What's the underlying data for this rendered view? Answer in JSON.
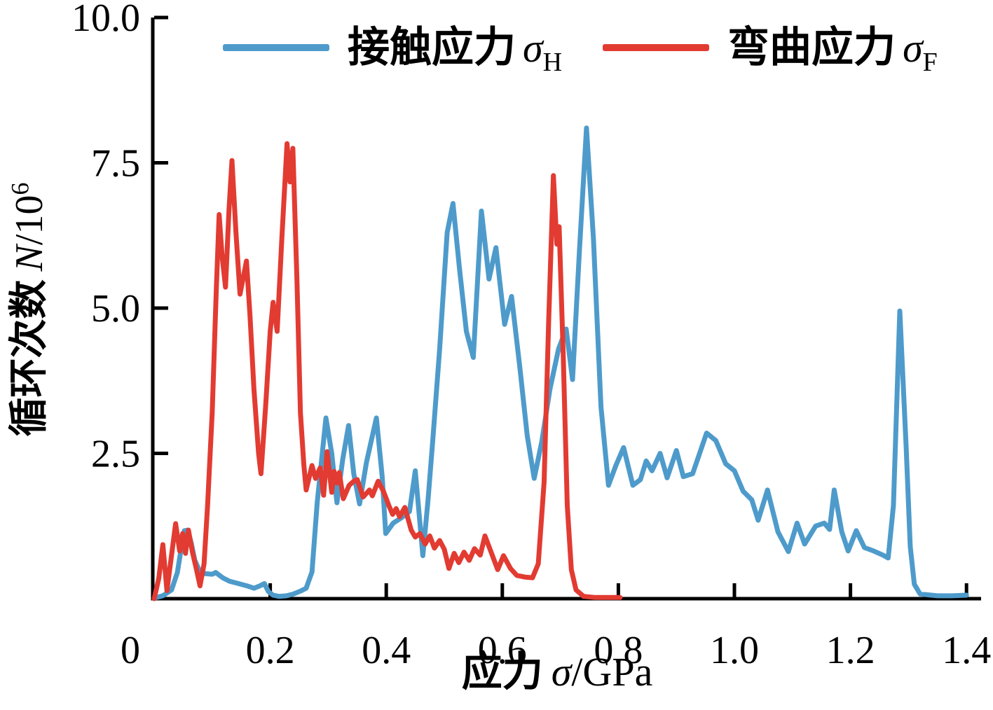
{
  "chart_data": {
    "type": "line",
    "title": "",
    "grid": false,
    "legend_position": "top-center",
    "xlabel": {
      "cn": "应力",
      "symbol": "σ",
      "unit": "/GPa"
    },
    "ylabel": {
      "cn": "循环次数",
      "symbol": "N",
      "denom": "/10",
      "exp": "6"
    },
    "xlim": [
      0,
      1.4
    ],
    "ylim": [
      0,
      10
    ],
    "origin_label": "0",
    "xticks": [
      {
        "v": 0.2,
        "label": "0.2"
      },
      {
        "v": 0.4,
        "label": "0.4"
      },
      {
        "v": 0.6,
        "label": "0.6"
      },
      {
        "v": 0.8,
        "label": "0.8"
      },
      {
        "v": 1.0,
        "label": "1.0"
      },
      {
        "v": 1.2,
        "label": "1.2"
      },
      {
        "v": 1.4,
        "label": "1.4"
      }
    ],
    "yticks": [
      {
        "v": 2.5,
        "label": "2.5"
      },
      {
        "v": 5.0,
        "label": "5.0"
      },
      {
        "v": 7.5,
        "label": "7.5"
      },
      {
        "v": 10.0,
        "label": "10.0"
      }
    ],
    "series": [
      {
        "name": "接触应力 σH",
        "slug": "contact-stress",
        "legend": {
          "cn": "接触应力",
          "symbol": "σ",
          "sub": "H"
        },
        "color": "#4E9BCB",
        "points": [
          [
            0.004,
            0.02
          ],
          [
            0.015,
            0.05
          ],
          [
            0.03,
            0.15
          ],
          [
            0.04,
            0.45
          ],
          [
            0.048,
            0.95
          ],
          [
            0.052,
            1.17
          ],
          [
            0.058,
            1.18
          ],
          [
            0.064,
            0.95
          ],
          [
            0.07,
            0.66
          ],
          [
            0.078,
            0.48
          ],
          [
            0.088,
            0.43
          ],
          [
            0.1,
            0.42
          ],
          [
            0.106,
            0.45
          ],
          [
            0.118,
            0.36
          ],
          [
            0.13,
            0.3
          ],
          [
            0.145,
            0.26
          ],
          [
            0.16,
            0.22
          ],
          [
            0.172,
            0.18
          ],
          [
            0.182,
            0.22
          ],
          [
            0.19,
            0.26
          ],
          [
            0.197,
            0.12
          ],
          [
            0.205,
            0.06
          ],
          [
            0.215,
            0.04
          ],
          [
            0.228,
            0.05
          ],
          [
            0.24,
            0.08
          ],
          [
            0.252,
            0.13
          ],
          [
            0.262,
            0.18
          ],
          [
            0.272,
            0.46
          ],
          [
            0.281,
            1.66
          ],
          [
            0.296,
            3.11
          ],
          [
            0.306,
            2.5
          ],
          [
            0.315,
            1.65
          ],
          [
            0.325,
            2.4
          ],
          [
            0.335,
            2.98
          ],
          [
            0.344,
            2.15
          ],
          [
            0.354,
            1.63
          ],
          [
            0.366,
            2.35
          ],
          [
            0.383,
            3.11
          ],
          [
            0.393,
            2.1
          ],
          [
            0.399,
            1.12
          ],
          [
            0.412,
            1.3
          ],
          [
            0.426,
            1.39
          ],
          [
            0.44,
            1.5
          ],
          [
            0.45,
            2.2
          ],
          [
            0.463,
            0.74
          ],
          [
            0.472,
            1.7
          ],
          [
            0.48,
            2.7
          ],
          [
            0.492,
            4.3
          ],
          [
            0.505,
            6.3
          ],
          [
            0.515,
            6.8
          ],
          [
            0.526,
            5.7
          ],
          [
            0.538,
            4.6
          ],
          [
            0.55,
            4.15
          ],
          [
            0.564,
            6.67
          ],
          [
            0.577,
            5.5
          ],
          [
            0.589,
            6.04
          ],
          [
            0.604,
            4.72
          ],
          [
            0.616,
            5.2
          ],
          [
            0.63,
            4.0
          ],
          [
            0.643,
            2.8
          ],
          [
            0.655,
            2.07
          ],
          [
            0.668,
            2.7
          ],
          [
            0.682,
            3.6
          ],
          [
            0.697,
            4.3
          ],
          [
            0.71,
            4.64
          ],
          [
            0.721,
            3.77
          ],
          [
            0.733,
            6.0
          ],
          [
            0.745,
            8.1
          ],
          [
            0.757,
            6.2
          ],
          [
            0.77,
            3.3
          ],
          [
            0.783,
            1.95
          ],
          [
            0.796,
            2.3
          ],
          [
            0.809,
            2.6
          ],
          [
            0.825,
            1.95
          ],
          [
            0.838,
            2.05
          ],
          [
            0.848,
            2.37
          ],
          [
            0.858,
            2.2
          ],
          [
            0.872,
            2.5
          ],
          [
            0.884,
            2.08
          ],
          [
            0.9,
            2.55
          ],
          [
            0.912,
            2.1
          ],
          [
            0.928,
            2.15
          ],
          [
            0.952,
            2.85
          ],
          [
            0.968,
            2.72
          ],
          [
            0.985,
            2.32
          ],
          [
            1.0,
            2.2
          ],
          [
            1.015,
            1.85
          ],
          [
            1.03,
            1.7
          ],
          [
            1.041,
            1.35
          ],
          [
            1.057,
            1.87
          ],
          [
            1.075,
            1.15
          ],
          [
            1.093,
            0.81
          ],
          [
            1.108,
            1.3
          ],
          [
            1.121,
            0.94
          ],
          [
            1.14,
            1.25
          ],
          [
            1.155,
            1.3
          ],
          [
            1.164,
            1.19
          ],
          [
            1.172,
            1.87
          ],
          [
            1.185,
            1.15
          ],
          [
            1.196,
            0.82
          ],
          [
            1.21,
            1.17
          ],
          [
            1.224,
            0.88
          ],
          [
            1.24,
            0.82
          ],
          [
            1.256,
            0.75
          ],
          [
            1.265,
            0.7
          ],
          [
            1.274,
            1.6
          ],
          [
            1.285,
            4.95
          ],
          [
            1.296,
            2.6
          ],
          [
            1.303,
            0.9
          ],
          [
            1.31,
            0.25
          ],
          [
            1.32,
            0.08
          ],
          [
            1.35,
            0.05
          ],
          [
            1.375,
            0.05
          ],
          [
            1.4,
            0.06
          ]
        ]
      },
      {
        "name": "弯曲应力 σF",
        "slug": "bending-stress",
        "legend": {
          "cn": "弯曲应力",
          "symbol": "σ",
          "sub": "F"
        },
        "color": "#E23B32",
        "points": [
          [
            0.0,
            0.0
          ],
          [
            0.008,
            0.35
          ],
          [
            0.015,
            0.93
          ],
          [
            0.022,
            0.14
          ],
          [
            0.03,
            0.75
          ],
          [
            0.037,
            1.29
          ],
          [
            0.044,
            0.82
          ],
          [
            0.049,
            1.12
          ],
          [
            0.054,
            0.78
          ],
          [
            0.059,
            1.18
          ],
          [
            0.066,
            0.8
          ],
          [
            0.073,
            0.5
          ],
          [
            0.079,
            0.22
          ],
          [
            0.086,
            0.6
          ],
          [
            0.092,
            1.6
          ],
          [
            0.1,
            3.2
          ],
          [
            0.107,
            5.3
          ],
          [
            0.112,
            6.61
          ],
          [
            0.117,
            5.9
          ],
          [
            0.123,
            5.36
          ],
          [
            0.129,
            6.7
          ],
          [
            0.134,
            7.54
          ],
          [
            0.141,
            6.3
          ],
          [
            0.148,
            5.24
          ],
          [
            0.155,
            5.6
          ],
          [
            0.159,
            5.81
          ],
          [
            0.165,
            4.9
          ],
          [
            0.172,
            3.6
          ],
          [
            0.18,
            2.5
          ],
          [
            0.184,
            2.15
          ],
          [
            0.192,
            3.3
          ],
          [
            0.2,
            4.6
          ],
          [
            0.205,
            5.1
          ],
          [
            0.212,
            4.6
          ],
          [
            0.22,
            6.2
          ],
          [
            0.229,
            7.83
          ],
          [
            0.234,
            7.17
          ],
          [
            0.239,
            7.75
          ],
          [
            0.246,
            5.5
          ],
          [
            0.252,
            3.2
          ],
          [
            0.258,
            2.3
          ],
          [
            0.262,
            1.87
          ],
          [
            0.272,
            2.29
          ],
          [
            0.278,
            2.07
          ],
          [
            0.286,
            2.25
          ],
          [
            0.292,
            1.78
          ],
          [
            0.298,
            2.53
          ],
          [
            0.306,
            1.83
          ],
          [
            0.31,
            2.19
          ],
          [
            0.315,
            1.99
          ],
          [
            0.319,
            2.17
          ],
          [
            0.326,
            1.72
          ],
          [
            0.336,
            1.95
          ],
          [
            0.344,
            2.02
          ],
          [
            0.35,
            2.05
          ],
          [
            0.36,
            1.75
          ],
          [
            0.371,
            1.87
          ],
          [
            0.376,
            1.77
          ],
          [
            0.386,
            2.02
          ],
          [
            0.395,
            1.85
          ],
          [
            0.405,
            1.59
          ],
          [
            0.411,
            1.45
          ],
          [
            0.417,
            1.55
          ],
          [
            0.423,
            1.41
          ],
          [
            0.432,
            1.57
          ],
          [
            0.443,
            1.18
          ],
          [
            0.45,
            1.06
          ],
          [
            0.458,
            1.12
          ],
          [
            0.467,
            0.94
          ],
          [
            0.475,
            1.08
          ],
          [
            0.483,
            0.87
          ],
          [
            0.492,
            1.0
          ],
          [
            0.5,
            0.85
          ],
          [
            0.508,
            0.52
          ],
          [
            0.517,
            0.78
          ],
          [
            0.525,
            0.62
          ],
          [
            0.534,
            0.8
          ],
          [
            0.543,
            0.66
          ],
          [
            0.552,
            0.86
          ],
          [
            0.562,
            0.75
          ],
          [
            0.57,
            1.08
          ],
          [
            0.58,
            0.82
          ],
          [
            0.592,
            0.5
          ],
          [
            0.602,
            0.74
          ],
          [
            0.614,
            0.52
          ],
          [
            0.625,
            0.4
          ],
          [
            0.64,
            0.37
          ],
          [
            0.652,
            0.36
          ],
          [
            0.662,
            0.6
          ],
          [
            0.672,
            2.0
          ],
          [
            0.68,
            4.8
          ],
          [
            0.688,
            7.28
          ],
          [
            0.694,
            6.1
          ],
          [
            0.698,
            6.4
          ],
          [
            0.705,
            4.2
          ],
          [
            0.712,
            1.6
          ],
          [
            0.719,
            0.5
          ],
          [
            0.727,
            0.15
          ],
          [
            0.74,
            0.04
          ],
          [
            0.76,
            0.02
          ],
          [
            0.78,
            0.02
          ],
          [
            0.803,
            0.02
          ]
        ]
      }
    ]
  }
}
